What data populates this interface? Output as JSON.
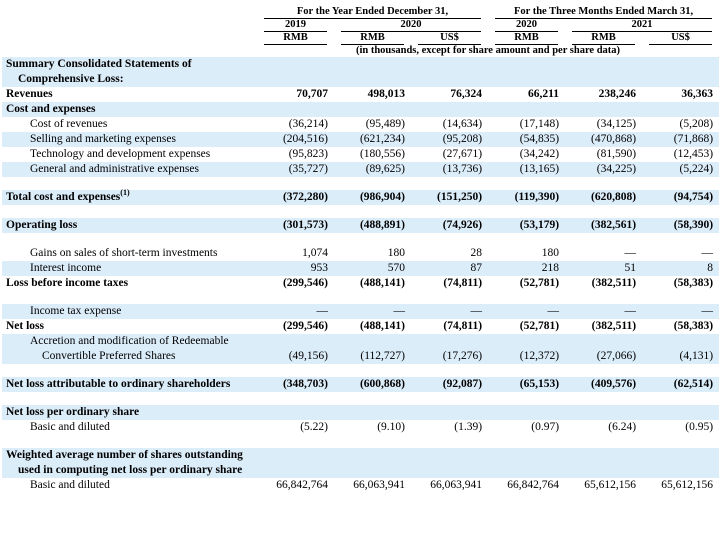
{
  "header": {
    "groups": [
      "For the Year Ended December 31,",
      "For the Three Months Ended March 31,"
    ],
    "years": [
      "2019",
      "2020",
      "2020",
      "2021"
    ],
    "currencies": [
      "RMB",
      "RMB",
      "US$",
      "RMB",
      "RMB",
      "US$"
    ],
    "note": "(in thousands, except for share amount and per share data)"
  },
  "table": {
    "rows": [
      {
        "label": "Summary Consolidated Statements of Comprehensive Loss:"
      },
      {
        "label": "Revenues",
        "values": [
          "70,707",
          "498,013",
          "76,324",
          "66,211",
          "238,246",
          "36,363"
        ]
      },
      {
        "label": "Cost and expenses"
      },
      {
        "label": "Cost of revenues",
        "values": [
          "(36,214)",
          "(95,489)",
          "(14,634)",
          "(17,148)",
          "(34,125)",
          "(5,208)"
        ]
      },
      {
        "label": "Selling and marketing expenses",
        "values": [
          "(204,516)",
          "(621,234)",
          "(95,208)",
          "(54,835)",
          "(470,868)",
          "(71,868)"
        ]
      },
      {
        "label": "Technology and development expenses",
        "values": [
          "(95,823)",
          "(180,556)",
          "(27,671)",
          "(34,242)",
          "(81,590)",
          "(12,453)"
        ]
      },
      {
        "label": "General and administrative expenses",
        "values": [
          "(35,727)",
          "(89,625)",
          "(13,736)",
          "(13,165)",
          "(34,225)",
          "(5,224)"
        ]
      },
      {
        "label": "Total cost and expenses",
        "footnote": "(1)",
        "values": [
          "(372,280)",
          "(986,904)",
          "(151,250)",
          "(119,390)",
          "(620,808)",
          "(94,754)"
        ]
      },
      {
        "label": "Operating loss",
        "values": [
          "(301,573)",
          "(488,891)",
          "(74,926)",
          "(53,179)",
          "(382,561)",
          "(58,390)"
        ]
      },
      {
        "label": "Gains on sales of short-term investments",
        "values": [
          "1,074",
          "180",
          "28",
          "180",
          "—",
          "—"
        ]
      },
      {
        "label": "Interest income",
        "values": [
          "953",
          "570",
          "87",
          "218",
          "51",
          "8"
        ]
      },
      {
        "label": "Loss before income taxes",
        "values": [
          "(299,546)",
          "(488,141)",
          "(74,811)",
          "(52,781)",
          "(382,511)",
          "(58,383)"
        ]
      },
      {
        "label": "Income tax expense",
        "values": [
          "—",
          "—",
          "—",
          "—",
          "—",
          "—"
        ]
      },
      {
        "label": "Net loss",
        "values": [
          "(299,546)",
          "(488,141)",
          "(74,811)",
          "(52,781)",
          "(382,511)",
          "(58,383)"
        ]
      },
      {
        "label": "Accretion and modification of Redeemable Convertible Preferred Shares",
        "values": [
          "(49,156)",
          "(112,727)",
          "(17,276)",
          "(12,372)",
          "(27,066)",
          "(4,131)"
        ]
      },
      {
        "label": "Net loss attributable to ordinary shareholders",
        "values": [
          "(348,703)",
          "(600,868)",
          "(92,087)",
          "(65,153)",
          "(409,576)",
          "(62,514)"
        ]
      },
      {
        "label": "Net loss per ordinary share"
      },
      {
        "label": "Basic and diluted",
        "values": [
          "(5.22)",
          "(9.10)",
          "(1.39)",
          "(0.97)",
          "(6.24)",
          "(0.95)"
        ]
      },
      {
        "label": "Weighted average number of shares outstanding used in computing net loss per ordinary share"
      },
      {
        "label": "Basic and diluted",
        "values": [
          "66,842,764",
          "66,063,941",
          "66,063,941",
          "66,842,764",
          "65,612,156",
          "65,612,156"
        ]
      }
    ]
  }
}
